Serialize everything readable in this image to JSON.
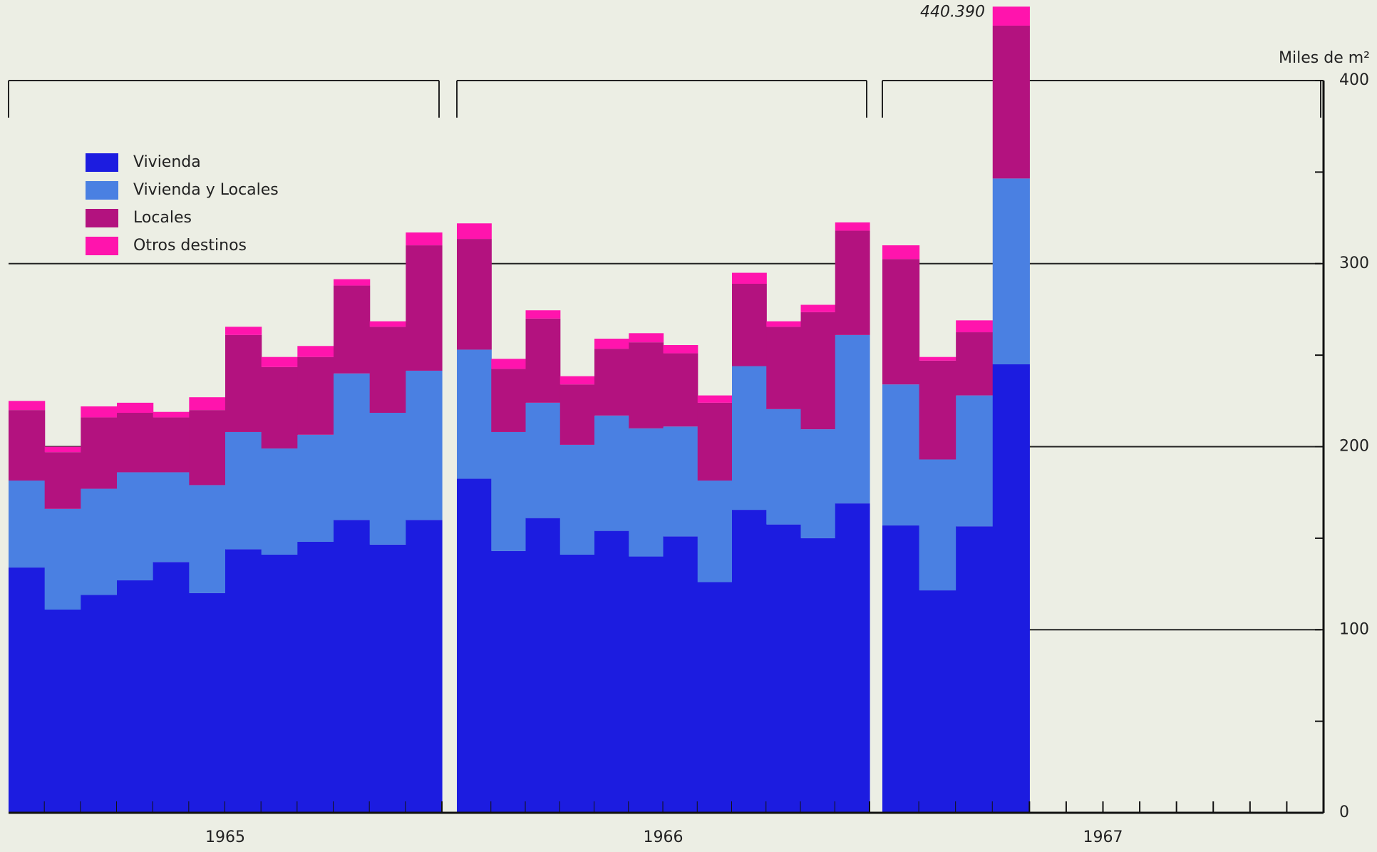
{
  "chart_data": {
    "type": "stacked-step-bar",
    "y_label": "Miles de m²",
    "years": [
      "1965",
      "1966",
      "1967"
    ],
    "categories": [
      null,
      null,
      null,
      null,
      null,
      null,
      null,
      null,
      null,
      null,
      null,
      null,
      null,
      null,
      null,
      null,
      null,
      null,
      null,
      null,
      null,
      null,
      null,
      null,
      null,
      null,
      null,
      null,
      null,
      null,
      null,
      null,
      null,
      null,
      null,
      null
    ],
    "series": [
      {
        "name": "Vivienda",
        "color": "#1c1ce0",
        "values": [
          134,
          111,
          119,
          127,
          137,
          120,
          144,
          141,
          148,
          160,
          146.5,
          160,
          182.5,
          143,
          161,
          141,
          154,
          140,
          151,
          126,
          165.5,
          157.5,
          150,
          169,
          157,
          121.5,
          156.5,
          245,
          null,
          null,
          null,
          null,
          null,
          null,
          null,
          null
        ]
      },
      {
        "name": "Vivienda y Locales",
        "color": "#4a80e2",
        "values": [
          47.5,
          55,
          58,
          59,
          49,
          59,
          64,
          58,
          58.5,
          80,
          72,
          81.5,
          70.5,
          65,
          63,
          60,
          63,
          70,
          60,
          55.5,
          78.5,
          63,
          59.5,
          92,
          77,
          71.5,
          71.5,
          101.5,
          null,
          null,
          null,
          null,
          null,
          null,
          null,
          null
        ]
      },
      {
        "name": "Locales",
        "color": "#b3127f",
        "values": [
          38.5,
          31,
          39,
          32.5,
          30,
          41,
          53,
          44.5,
          42.5,
          48,
          47,
          68.5,
          60.5,
          34.5,
          46,
          33,
          36.5,
          47,
          40,
          42.5,
          45,
          45,
          64,
          57,
          68.5,
          54,
          34.5,
          83.5,
          null,
          null,
          null,
          null,
          null,
          null,
          null,
          null
        ]
      },
      {
        "name": "Otros destinos",
        "color": "#ff14ad",
        "values": [
          5,
          3,
          6,
          5.5,
          3,
          7,
          4.5,
          5.5,
          6,
          3.5,
          3,
          7,
          8.5,
          5.5,
          4.5,
          4.5,
          5.5,
          5,
          4.5,
          4,
          6,
          3,
          4,
          4.5,
          7.5,
          2,
          6.5,
          10.39,
          null,
          null,
          null,
          null,
          null,
          null,
          null,
          null
        ]
      }
    ],
    "annotation": {
      "value": 440.39,
      "label": "440.390"
    },
    "ylim": [
      0,
      400
    ],
    "yticks": [
      0,
      100,
      200,
      300,
      400
    ],
    "grid": true,
    "legend": "top-left"
  }
}
